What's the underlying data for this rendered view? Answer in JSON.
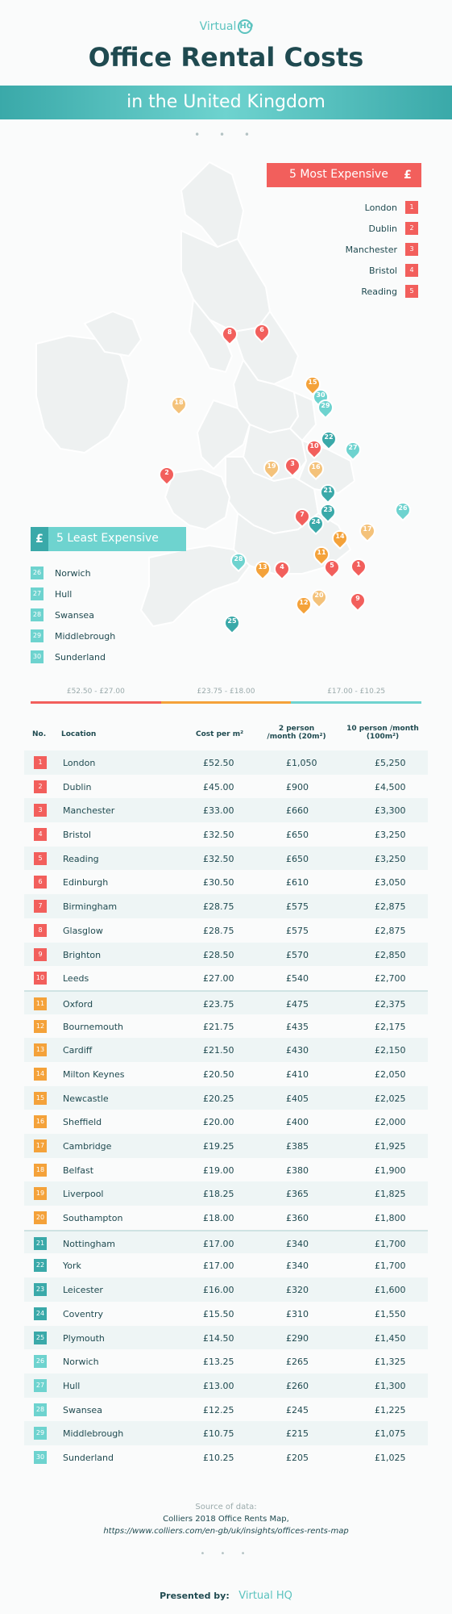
{
  "brand": {
    "name": "Virtual",
    "mark": "HQ"
  },
  "title": "Office Rental Costs",
  "subtitle": "in the United Kingdom",
  "colors": {
    "red": "#f25f5c",
    "orange": "#f4a23a",
    "teal_light": "#6ed3cf",
    "teal_dark": "#3aa9a9",
    "navy": "#1f4a50"
  },
  "most_expensive": {
    "title": "5 Most Expensive",
    "icon": "£",
    "items": [
      {
        "name": "London",
        "num": "1"
      },
      {
        "name": "Dublin",
        "num": "2"
      },
      {
        "name": "Manchester",
        "num": "3"
      },
      {
        "name": "Bristol",
        "num": "4"
      },
      {
        "name": "Reading",
        "num": "5"
      }
    ]
  },
  "least_expensive": {
    "title": "5 Least Expensive",
    "icon": "£",
    "items": [
      {
        "name": "Norwich",
        "num": "26"
      },
      {
        "name": "Hull",
        "num": "27"
      },
      {
        "name": "Swansea",
        "num": "28"
      },
      {
        "name": "Middlebrough",
        "num": "29"
      },
      {
        "name": "Sunderland",
        "num": "30"
      }
    ]
  },
  "legend": [
    "£52.50 - £27.00",
    "£23.75 - £18.00",
    "£17.00 - £10.25"
  ],
  "table": {
    "headers": {
      "no": "No.",
      "location": "Location",
      "cost": "Cost per m²",
      "two": "2 person /month (20m²)",
      "ten": "10 person /month (100m²)"
    },
    "rows": [
      {
        "no": "1",
        "loc": "London",
        "cost": "£52.50",
        "two": "£1,050",
        "ten": "£5,250"
      },
      {
        "no": "2",
        "loc": "Dublin",
        "cost": "£45.00",
        "two": "£900",
        "ten": "£4,500"
      },
      {
        "no": "3",
        "loc": "Manchester",
        "cost": "£33.00",
        "two": "£660",
        "ten": "£3,300"
      },
      {
        "no": "4",
        "loc": "Bristol",
        "cost": "£32.50",
        "two": "£650",
        "ten": "£3,250"
      },
      {
        "no": "5",
        "loc": "Reading",
        "cost": "£32.50",
        "two": "£650",
        "ten": "£3,250"
      },
      {
        "no": "6",
        "loc": "Edinburgh",
        "cost": "£30.50",
        "two": "£610",
        "ten": "£3,050"
      },
      {
        "no": "7",
        "loc": "Birmingham",
        "cost": "£28.75",
        "two": "£575",
        "ten": "£2,875"
      },
      {
        "no": "8",
        "loc": "Glasglow",
        "cost": "£28.75",
        "two": "£575",
        "ten": "£2,875"
      },
      {
        "no": "9",
        "loc": "Brighton",
        "cost": "£28.50",
        "two": "£570",
        "ten": "£2,850"
      },
      {
        "no": "10",
        "loc": "Leeds",
        "cost": "£27.00",
        "two": "£540",
        "ten": "£2,700"
      },
      {
        "no": "11",
        "loc": "Oxford",
        "cost": "£23.75",
        "two": "£475",
        "ten": "£2,375"
      },
      {
        "no": "12",
        "loc": "Bournemouth",
        "cost": "£21.75",
        "two": "£435",
        "ten": "£2,175"
      },
      {
        "no": "13",
        "loc": "Cardiff",
        "cost": "£21.50",
        "two": "£430",
        "ten": "£2,150"
      },
      {
        "no": "14",
        "loc": "Milton Keynes",
        "cost": "£20.50",
        "two": "£410",
        "ten": "£2,050"
      },
      {
        "no": "15",
        "loc": "Newcastle",
        "cost": "£20.25",
        "two": "£405",
        "ten": "£2,025"
      },
      {
        "no": "16",
        "loc": "Sheffield",
        "cost": "£20.00",
        "two": "£400",
        "ten": "£2,000"
      },
      {
        "no": "17",
        "loc": "Cambridge",
        "cost": "£19.25",
        "two": "£385",
        "ten": "£1,925"
      },
      {
        "no": "18",
        "loc": "Belfast",
        "cost": "£19.00",
        "two": "£380",
        "ten": "£1,900"
      },
      {
        "no": "19",
        "loc": "Liverpool",
        "cost": "£18.25",
        "two": "£365",
        "ten": "£1,825"
      },
      {
        "no": "20",
        "loc": "Southampton",
        "cost": "£18.00",
        "two": "£360",
        "ten": "£1,800"
      },
      {
        "no": "21",
        "loc": "Nottingham",
        "cost": "£17.00",
        "two": "£340",
        "ten": "£1,700"
      },
      {
        "no": "22",
        "loc": "York",
        "cost": "£17.00",
        "two": "£340",
        "ten": "£1,700"
      },
      {
        "no": "23",
        "loc": "Leicester",
        "cost": "£16.00",
        "two": "£320",
        "ten": "£1,600"
      },
      {
        "no": "24",
        "loc": "Coventry",
        "cost": "£15.50",
        "two": "£310",
        "ten": "£1,550"
      },
      {
        "no": "25",
        "loc": "Plymouth",
        "cost": "£14.50",
        "two": "£290",
        "ten": "£1,450"
      },
      {
        "no": "26",
        "loc": "Norwich",
        "cost": "£13.25",
        "two": "£265",
        "ten": "£1,325"
      },
      {
        "no": "27",
        "loc": "Hull",
        "cost": "£13.00",
        "two": "£260",
        "ten": "£1,300"
      },
      {
        "no": "28",
        "loc": "Swansea",
        "cost": "£12.25",
        "two": "£245",
        "ten": "£1,225"
      },
      {
        "no": "29",
        "loc": "Middlebrough",
        "cost": "£10.75",
        "two": "£215",
        "ten": "£1,075"
      },
      {
        "no": "30",
        "loc": "Sunderland",
        "cost": "£10.25",
        "two": "£205",
        "ten": "£1,025"
      }
    ]
  },
  "source": {
    "label": "Source of data:",
    "name": "Colliers 2018 Office Rents Map,",
    "url": "https://www.colliers.com/en-gb/uk/insights/offices-rents-map"
  },
  "footer": {
    "presented_by": "Presented by:"
  }
}
